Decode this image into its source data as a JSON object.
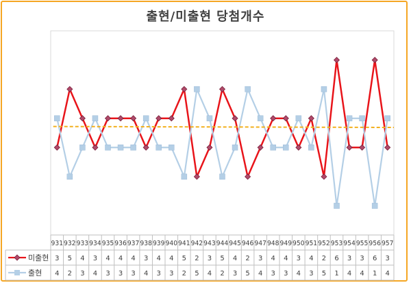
{
  "chart_data": {
    "type": "line",
    "title": "출현/미출현 당첨개수",
    "categories": [
      "931",
      "932",
      "933",
      "934",
      "935",
      "936",
      "937",
      "938",
      "939",
      "940",
      "941",
      "942",
      "943",
      "944",
      "945",
      "946",
      "947",
      "948",
      "949",
      "950",
      "951",
      "952",
      "953",
      "954",
      "955",
      "956",
      "957"
    ],
    "series": [
      {
        "name": "미출현",
        "color": "#e8141a",
        "marker": "diamond",
        "values": [
          3,
          5,
          4,
          3,
          4,
          4,
          4,
          3,
          4,
          4,
          5,
          2,
          3,
          5,
          4,
          2,
          3,
          4,
          4,
          3,
          4,
          2,
          6,
          3,
          3,
          6,
          3
        ]
      },
      {
        "name": "출현",
        "color": "#b4cfe6",
        "marker": "square",
        "values": [
          4,
          2,
          3,
          4,
          3,
          3,
          3,
          4,
          3,
          3,
          2,
          5,
          4,
          2,
          3,
          5,
          4,
          3,
          3,
          4,
          3,
          5,
          1,
          4,
          4,
          1,
          4
        ]
      }
    ],
    "trendline": {
      "color": "#f2b01e",
      "style": "dashed"
    },
    "ylim": [
      0,
      7
    ],
    "legend_position": "data-table",
    "grid": false
  }
}
